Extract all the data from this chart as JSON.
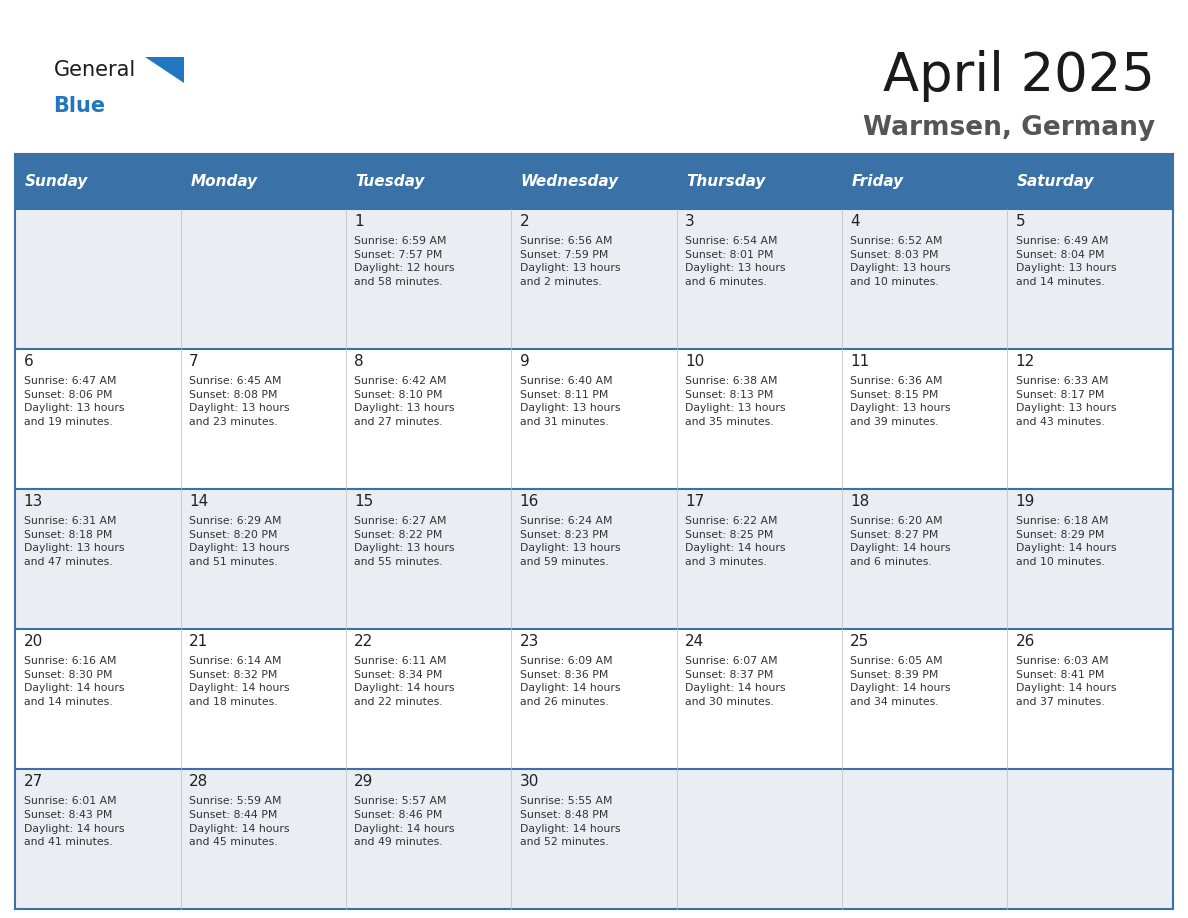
{
  "title": "April 2025",
  "subtitle": "Warmsen, Germany",
  "header_bg_color": "#3A72A8",
  "header_text_color": "#FFFFFF",
  "cell_bg_even": "#EAEEF2",
  "cell_bg_odd": "#FFFFFF",
  "grid_color": "#3A72A8",
  "text_color": "#333333",
  "day_number_color": "#222222",
  "day_headers": [
    "Sunday",
    "Monday",
    "Tuesday",
    "Wednesday",
    "Thursday",
    "Friday",
    "Saturday"
  ],
  "weeks": [
    [
      {
        "day": null,
        "sunrise": null,
        "sunset": null,
        "daylight": null
      },
      {
        "day": null,
        "sunrise": null,
        "sunset": null,
        "daylight": null
      },
      {
        "day": 1,
        "sunrise": "6:59 AM",
        "sunset": "7:57 PM",
        "daylight": "12 hours\nand 58 minutes."
      },
      {
        "day": 2,
        "sunrise": "6:56 AM",
        "sunset": "7:59 PM",
        "daylight": "13 hours\nand 2 minutes."
      },
      {
        "day": 3,
        "sunrise": "6:54 AM",
        "sunset": "8:01 PM",
        "daylight": "13 hours\nand 6 minutes."
      },
      {
        "day": 4,
        "sunrise": "6:52 AM",
        "sunset": "8:03 PM",
        "daylight": "13 hours\nand 10 minutes."
      },
      {
        "day": 5,
        "sunrise": "6:49 AM",
        "sunset": "8:04 PM",
        "daylight": "13 hours\nand 14 minutes."
      }
    ],
    [
      {
        "day": 6,
        "sunrise": "6:47 AM",
        "sunset": "8:06 PM",
        "daylight": "13 hours\nand 19 minutes."
      },
      {
        "day": 7,
        "sunrise": "6:45 AM",
        "sunset": "8:08 PM",
        "daylight": "13 hours\nand 23 minutes."
      },
      {
        "day": 8,
        "sunrise": "6:42 AM",
        "sunset": "8:10 PM",
        "daylight": "13 hours\nand 27 minutes."
      },
      {
        "day": 9,
        "sunrise": "6:40 AM",
        "sunset": "8:11 PM",
        "daylight": "13 hours\nand 31 minutes."
      },
      {
        "day": 10,
        "sunrise": "6:38 AM",
        "sunset": "8:13 PM",
        "daylight": "13 hours\nand 35 minutes."
      },
      {
        "day": 11,
        "sunrise": "6:36 AM",
        "sunset": "8:15 PM",
        "daylight": "13 hours\nand 39 minutes."
      },
      {
        "day": 12,
        "sunrise": "6:33 AM",
        "sunset": "8:17 PM",
        "daylight": "13 hours\nand 43 minutes."
      }
    ],
    [
      {
        "day": 13,
        "sunrise": "6:31 AM",
        "sunset": "8:18 PM",
        "daylight": "13 hours\nand 47 minutes."
      },
      {
        "day": 14,
        "sunrise": "6:29 AM",
        "sunset": "8:20 PM",
        "daylight": "13 hours\nand 51 minutes."
      },
      {
        "day": 15,
        "sunrise": "6:27 AM",
        "sunset": "8:22 PM",
        "daylight": "13 hours\nand 55 minutes."
      },
      {
        "day": 16,
        "sunrise": "6:24 AM",
        "sunset": "8:23 PM",
        "daylight": "13 hours\nand 59 minutes."
      },
      {
        "day": 17,
        "sunrise": "6:22 AM",
        "sunset": "8:25 PM",
        "daylight": "14 hours\nand 3 minutes."
      },
      {
        "day": 18,
        "sunrise": "6:20 AM",
        "sunset": "8:27 PM",
        "daylight": "14 hours\nand 6 minutes."
      },
      {
        "day": 19,
        "sunrise": "6:18 AM",
        "sunset": "8:29 PM",
        "daylight": "14 hours\nand 10 minutes."
      }
    ],
    [
      {
        "day": 20,
        "sunrise": "6:16 AM",
        "sunset": "8:30 PM",
        "daylight": "14 hours\nand 14 minutes."
      },
      {
        "day": 21,
        "sunrise": "6:14 AM",
        "sunset": "8:32 PM",
        "daylight": "14 hours\nand 18 minutes."
      },
      {
        "day": 22,
        "sunrise": "6:11 AM",
        "sunset": "8:34 PM",
        "daylight": "14 hours\nand 22 minutes."
      },
      {
        "day": 23,
        "sunrise": "6:09 AM",
        "sunset": "8:36 PM",
        "daylight": "14 hours\nand 26 minutes."
      },
      {
        "day": 24,
        "sunrise": "6:07 AM",
        "sunset": "8:37 PM",
        "daylight": "14 hours\nand 30 minutes."
      },
      {
        "day": 25,
        "sunrise": "6:05 AM",
        "sunset": "8:39 PM",
        "daylight": "14 hours\nand 34 minutes."
      },
      {
        "day": 26,
        "sunrise": "6:03 AM",
        "sunset": "8:41 PM",
        "daylight": "14 hours\nand 37 minutes."
      }
    ],
    [
      {
        "day": 27,
        "sunrise": "6:01 AM",
        "sunset": "8:43 PM",
        "daylight": "14 hours\nand 41 minutes."
      },
      {
        "day": 28,
        "sunrise": "5:59 AM",
        "sunset": "8:44 PM",
        "daylight": "14 hours\nand 45 minutes."
      },
      {
        "day": 29,
        "sunrise": "5:57 AM",
        "sunset": "8:46 PM",
        "daylight": "14 hours\nand 49 minutes."
      },
      {
        "day": 30,
        "sunrise": "5:55 AM",
        "sunset": "8:48 PM",
        "daylight": "14 hours\nand 52 minutes."
      },
      {
        "day": null,
        "sunrise": null,
        "sunset": null,
        "daylight": null
      },
      {
        "day": null,
        "sunrise": null,
        "sunset": null,
        "daylight": null
      },
      {
        "day": null,
        "sunrise": null,
        "sunset": null,
        "daylight": null
      }
    ]
  ],
  "logo_color_general": "#1a1a1a",
  "logo_color_blue": "#2176C0",
  "logo_triangle_color": "#2176C0",
  "title_color": "#1a1a1a",
  "subtitle_color": "#555555"
}
